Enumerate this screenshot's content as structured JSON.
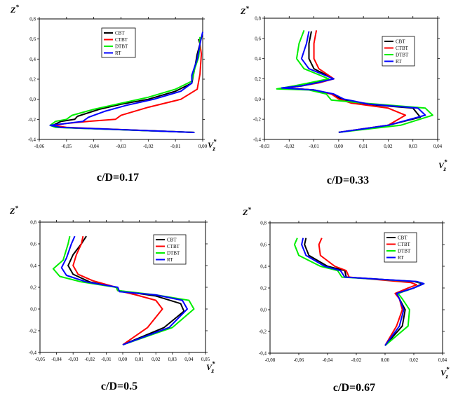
{
  "chart_data": [
    {
      "type": "line",
      "caption": "c/D=0.17",
      "ylabel_main": "Z",
      "ylabel_sup": "*",
      "xlabel_main": "V",
      "xlabel_sub": "z",
      "xlabel_sup": "*",
      "xlim": [
        -0.06,
        0.0
      ],
      "ylim": [
        -0.4,
        0.8
      ],
      "xticks": [
        -0.06,
        -0.05,
        -0.04,
        -0.03,
        -0.02,
        -0.01,
        0.0
      ],
      "xtick_labels": [
        "-0,06",
        "-0,05",
        "-0,04",
        "-0,03",
        "-0,02",
        "-0,01",
        "0,00"
      ],
      "yticks": [
        -0.4,
        -0.2,
        0.0,
        0.2,
        0.4,
        0.6,
        0.8
      ],
      "ytick_labels": [
        "-0,4",
        "-0,2",
        "0,0",
        "0,2",
        "0,4",
        "0,6",
        "0,8"
      ],
      "legend": [
        "CBT",
        "CTBT",
        "DTBT",
        "RT"
      ],
      "series": [
        {
          "name": "CBT",
          "color": "#000000",
          "x": [
            -0.003,
            -0.053,
            -0.055,
            -0.052,
            -0.047,
            -0.046,
            -0.038,
            -0.03,
            -0.02,
            -0.01,
            -0.004,
            -0.003,
            -0.002,
            -0.001,
            -0.0015
          ],
          "y": [
            -0.33,
            -0.28,
            -0.26,
            -0.22,
            -0.2,
            -0.17,
            -0.1,
            -0.05,
            0.0,
            0.08,
            0.16,
            0.3,
            0.45,
            0.55,
            0.6
          ]
        },
        {
          "name": "CTBT",
          "color": "#ff0000",
          "x": [
            -0.003,
            -0.05,
            -0.055,
            -0.05,
            -0.042,
            -0.032,
            -0.03,
            -0.02,
            -0.008,
            -0.002,
            -0.001,
            -0.0005,
            -0.001
          ],
          "y": [
            -0.33,
            -0.28,
            -0.26,
            -0.24,
            -0.22,
            -0.2,
            -0.16,
            -0.08,
            0.0,
            0.1,
            0.25,
            0.45,
            0.55
          ]
        },
        {
          "name": "DTBT",
          "color": "#00ee00",
          "x": [
            -0.003,
            -0.054,
            -0.056,
            -0.054,
            -0.05,
            -0.048,
            -0.04,
            -0.03,
            -0.02,
            -0.01,
            -0.004,
            -0.003,
            -0.0015,
            -0.001,
            -0.001
          ],
          "y": [
            -0.33,
            -0.28,
            -0.26,
            -0.22,
            -0.2,
            -0.16,
            -0.1,
            -0.04,
            0.02,
            0.1,
            0.18,
            0.3,
            0.42,
            0.55,
            0.62
          ]
        },
        {
          "name": "RT",
          "color": "#0000ff",
          "x": [
            -0.003,
            -0.052,
            -0.056,
            -0.05,
            -0.044,
            -0.042,
            -0.036,
            -0.028,
            -0.018,
            -0.008,
            -0.004,
            -0.004,
            -0.002,
            -0.001,
            0.0
          ],
          "y": [
            -0.33,
            -0.28,
            -0.26,
            -0.24,
            -0.22,
            -0.18,
            -0.12,
            -0.06,
            0.0,
            0.08,
            0.16,
            0.24,
            0.4,
            0.55,
            0.67
          ]
        }
      ]
    },
    {
      "type": "line",
      "caption": "c/D=0.33",
      "ylabel_main": "Z",
      "ylabel_sup": "*",
      "xlabel_main": "V",
      "xlabel_sub": "z",
      "xlabel_sup": "*",
      "xlim": [
        -0.03,
        0.04
      ],
      "ylim": [
        -0.4,
        0.8
      ],
      "xticks": [
        -0.03,
        -0.02,
        -0.01,
        0.0,
        0.01,
        0.02,
        0.03,
        0.04
      ],
      "xtick_labels": [
        "-0,03",
        "-0,02",
        "-0,01",
        "0,00",
        "0,01",
        "0,02",
        "0,03",
        "0,04"
      ],
      "yticks": [
        -0.4,
        -0.2,
        0.0,
        0.2,
        0.4,
        0.6,
        0.8
      ],
      "ytick_labels": [
        "-0,4",
        "-0,2",
        "0,0",
        "0,2",
        "0,4",
        "0,6",
        "0,8"
      ],
      "legend": [
        "CBT",
        "CTBT",
        "DTBT",
        "RT"
      ],
      "series": [
        {
          "name": "CBT",
          "color": "#000000",
          "x": [
            0.0,
            0.02,
            0.033,
            0.03,
            0.01,
            0.001,
            -0.003,
            -0.01,
            -0.022,
            -0.015,
            -0.01,
            -0.002,
            -0.01,
            -0.012,
            -0.012,
            -0.011
          ],
          "y": [
            -0.33,
            -0.26,
            -0.18,
            -0.09,
            -0.05,
            0.0,
            0.05,
            0.09,
            0.11,
            0.13,
            0.16,
            0.2,
            0.3,
            0.4,
            0.55,
            0.67
          ]
        },
        {
          "name": "CTBT",
          "color": "#ff0000",
          "x": [
            0.0,
            0.02,
            0.027,
            0.02,
            0.005,
            0.0,
            -0.003,
            -0.01,
            -0.022,
            -0.015,
            -0.008,
            -0.002,
            -0.008,
            -0.01,
            -0.01,
            -0.009
          ],
          "y": [
            -0.33,
            -0.26,
            -0.16,
            -0.09,
            -0.04,
            0.0,
            0.05,
            0.09,
            0.11,
            0.13,
            0.16,
            0.2,
            0.3,
            0.4,
            0.55,
            0.68
          ]
        },
        {
          "name": "DTBT",
          "color": "#00ee00",
          "x": [
            0.0,
            0.025,
            0.038,
            0.035,
            0.01,
            -0.003,
            -0.005,
            -0.012,
            -0.025,
            -0.018,
            -0.012,
            -0.004,
            -0.014,
            -0.017,
            -0.016,
            -0.014
          ],
          "y": [
            -0.33,
            -0.26,
            -0.16,
            -0.09,
            -0.04,
            -0.01,
            0.05,
            0.09,
            0.1,
            0.13,
            0.16,
            0.2,
            0.3,
            0.4,
            0.55,
            0.68
          ]
        },
        {
          "name": "RT",
          "color": "#0000ff",
          "x": [
            0.0,
            0.02,
            0.035,
            0.032,
            0.012,
            0.002,
            -0.002,
            -0.01,
            -0.023,
            -0.015,
            -0.009,
            -0.002,
            -0.012,
            -0.015,
            -0.013,
            -0.012
          ],
          "y": [
            -0.33,
            -0.26,
            -0.16,
            -0.09,
            -0.05,
            0.0,
            0.05,
            0.09,
            0.11,
            0.13,
            0.16,
            0.2,
            0.3,
            0.4,
            0.55,
            0.67
          ]
        }
      ]
    },
    {
      "type": "line",
      "caption": "c/D=0.5",
      "ylabel_main": "Z",
      "ylabel_sup": "*",
      "xlabel_main": "V",
      "xlabel_sub": "z",
      "xlabel_sup": "*",
      "xlim": [
        -0.05,
        0.05
      ],
      "ylim": [
        -0.4,
        0.8
      ],
      "xticks": [
        -0.05,
        -0.04,
        -0.03,
        -0.02,
        -0.01,
        0.0,
        0.01,
        0.02,
        0.03,
        0.04,
        0.05
      ],
      "xtick_labels": [
        "-0,05",
        "-0,04",
        "-0,03",
        "-0,02",
        "-0,01",
        "0,00",
        "0,01",
        "0,02",
        "0,03",
        "0,04",
        "0,05"
      ],
      "yticks": [
        -0.4,
        -0.2,
        0.0,
        0.2,
        0.4,
        0.6,
        0.8
      ],
      "ytick_labels": [
        "-0,4",
        "-0,2",
        "0,0",
        "0,2",
        "0,4",
        "0,6",
        "0,8"
      ],
      "legend": [
        "CBT",
        "CTBT",
        "DTBT",
        "RT"
      ],
      "series": [
        {
          "name": "CBT",
          "color": "#000000",
          "x": [
            0.0,
            0.025,
            0.037,
            0.035,
            0.02,
            -0.003,
            -0.004,
            -0.02,
            -0.03,
            -0.033,
            -0.03,
            -0.025,
            -0.022
          ],
          "y": [
            -0.33,
            -0.17,
            -0.02,
            0.05,
            0.12,
            0.17,
            0.2,
            0.25,
            0.32,
            0.4,
            0.5,
            0.6,
            0.67
          ]
        },
        {
          "name": "CTBT",
          "color": "#ff0000",
          "x": [
            0.0,
            0.015,
            0.024,
            0.02,
            0.008,
            -0.003,
            -0.004,
            -0.018,
            -0.027,
            -0.03,
            -0.028,
            -0.025,
            -0.024
          ],
          "y": [
            -0.33,
            -0.17,
            0.0,
            0.08,
            0.13,
            0.17,
            0.2,
            0.26,
            0.32,
            0.4,
            0.5,
            0.6,
            0.67
          ]
        },
        {
          "name": "DTBT",
          "color": "#00ee00",
          "x": [
            0.0,
            0.03,
            0.043,
            0.04,
            0.02,
            -0.003,
            -0.004,
            -0.025,
            -0.038,
            -0.042,
            -0.036,
            -0.033,
            -0.032
          ],
          "y": [
            -0.33,
            -0.17,
            0.0,
            0.08,
            0.13,
            0.17,
            0.2,
            0.25,
            0.3,
            0.37,
            0.45,
            0.6,
            0.67
          ]
        },
        {
          "name": "RT",
          "color": "#0000ff",
          "x": [
            0.0,
            0.028,
            0.039,
            0.036,
            0.02,
            -0.002,
            -0.003,
            -0.022,
            -0.034,
            -0.037,
            -0.034,
            -0.031,
            -0.029
          ],
          "y": [
            -0.33,
            -0.17,
            0.0,
            0.08,
            0.13,
            0.16,
            0.2,
            0.25,
            0.31,
            0.38,
            0.47,
            0.6,
            0.67
          ]
        }
      ]
    },
    {
      "type": "line",
      "caption": "c/D=0.67",
      "ylabel_main": "Z",
      "ylabel_sup": "*",
      "xlabel_main": "V",
      "xlabel_sub": "z",
      "xlabel_sup": "*",
      "xlim": [
        -0.08,
        0.04
      ],
      "ylim": [
        -0.4,
        0.8
      ],
      "xticks": [
        -0.08,
        -0.06,
        -0.04,
        -0.02,
        0.0,
        0.02,
        0.04
      ],
      "xtick_labels": [
        "-0,08",
        "-0,06",
        "-0,04",
        "-0,02",
        "0,00",
        "0,02",
        "0,04"
      ],
      "yticks": [
        -0.4,
        -0.2,
        0.0,
        0.2,
        0.4,
        0.6,
        0.8
      ],
      "ytick_labels": [
        "-0,4",
        "-0,2",
        "0,0",
        "0,2",
        "0,4",
        "0,6",
        "0,8"
      ],
      "legend": [
        "CBT",
        "CTBT",
        "DTBT",
        "RT"
      ],
      "series": [
        {
          "name": "CBT",
          "color": "#000000",
          "x": [
            0.0,
            0.012,
            0.014,
            0.01,
            0.008,
            0.02,
            0.026,
            0.02,
            -0.027,
            -0.028,
            -0.04,
            -0.053,
            -0.056,
            -0.055
          ],
          "y": [
            -0.33,
            -0.15,
            0.0,
            0.1,
            0.15,
            0.2,
            0.24,
            0.26,
            0.3,
            0.36,
            0.4,
            0.5,
            0.6,
            0.66
          ]
        },
        {
          "name": "CTBT",
          "color": "#ff0000",
          "x": [
            0.0,
            0.008,
            0.012,
            0.01,
            0.007,
            0.016,
            0.022,
            0.018,
            -0.025,
            -0.027,
            -0.035,
            -0.045,
            -0.046,
            -0.044
          ],
          "y": [
            -0.33,
            -0.15,
            0.0,
            0.1,
            0.15,
            0.2,
            0.23,
            0.25,
            0.3,
            0.36,
            0.4,
            0.5,
            0.6,
            0.66
          ]
        },
        {
          "name": "DTBT",
          "color": "#00ee00",
          "x": [
            0.0,
            0.016,
            0.017,
            0.012,
            0.009,
            0.02,
            0.027,
            0.021,
            -0.03,
            -0.033,
            -0.045,
            -0.06,
            -0.063,
            -0.061
          ],
          "y": [
            -0.33,
            -0.15,
            0.0,
            0.1,
            0.15,
            0.2,
            0.24,
            0.26,
            0.3,
            0.36,
            0.4,
            0.5,
            0.6,
            0.66
          ]
        },
        {
          "name": "RT",
          "color": "#0000ff",
          "x": [
            0.0,
            0.01,
            0.013,
            0.01,
            0.008,
            0.02,
            0.027,
            0.022,
            -0.028,
            -0.031,
            -0.042,
            -0.055,
            -0.058,
            -0.057
          ],
          "y": [
            -0.33,
            -0.15,
            0.0,
            0.1,
            0.15,
            0.2,
            0.24,
            0.26,
            0.3,
            0.36,
            0.4,
            0.5,
            0.6,
            0.66
          ]
        }
      ]
    }
  ]
}
